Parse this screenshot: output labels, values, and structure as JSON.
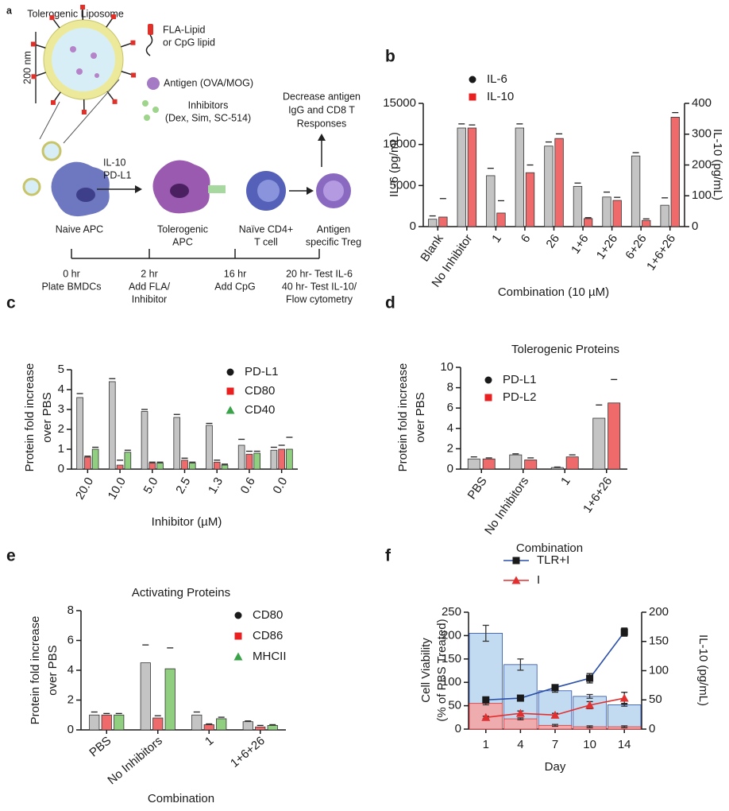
{
  "diagram": {
    "panel_label": "a",
    "liposome_title": "Tolerogenic Liposome",
    "scale_label": "200 nm",
    "legend": [
      [
        "FLA-Lipid",
        "or CpG lipid"
      ],
      [
        "Antigen (OVA/MOG)"
      ],
      [
        "Inhibitors",
        "(Dex, Sim, SC-514)"
      ]
    ],
    "outcome": [
      "Decrease antigen",
      "IgG and CD8 T",
      "Responses"
    ],
    "signals": [
      "IL-10",
      "PD-L1"
    ],
    "cells": [
      [
        "Naive APC"
      ],
      [
        "Tolerogenic",
        "APC"
      ],
      [
        "Naïve CD4+",
        "T cell"
      ],
      [
        "Antigen",
        "specific Treg"
      ]
    ],
    "timeline": [
      [
        "0 hr",
        "Plate BMDCs"
      ],
      [
        "2 hr",
        "Add FLA/",
        "Inhibitor"
      ],
      [
        "16 hr",
        "Add CpG"
      ],
      [
        "20 hr- Test IL-6",
        "40 hr- Test IL-10/",
        "Flow cytometry"
      ]
    ]
  },
  "chart_data": [
    {
      "type": "bar",
      "panel_label": "b",
      "xlabel": "Combination (10 µM)",
      "ylabel": [
        "IL-6 (pg/mL)"
      ],
      "y2label": "IL-10 (pg/mL)",
      "categories": [
        "Blank",
        "No Inhibitor",
        "1",
        "6",
        "26",
        "1+6",
        "1+26",
        "6+26",
        "1+6+26"
      ],
      "ylim": [
        0,
        15000
      ],
      "yticks": [
        0,
        5000,
        10000,
        15000
      ],
      "y2lim": [
        0,
        400
      ],
      "y2ticks": [
        0,
        100,
        200,
        300,
        400
      ],
      "series": [
        {
          "name": "IL-6",
          "color": "#c4c4c4",
          "marker_color": "#1a1a1a",
          "marker": "circle",
          "values": [
            900,
            12000,
            6200,
            12000,
            9800,
            4900,
            3600,
            8600,
            2600
          ],
          "errors": [
            400,
            500,
            900,
            500,
            500,
            400,
            600,
            400,
            900
          ]
        },
        {
          "name": "IL-10",
          "color": "#ef6b6b",
          "marker_color": "#e8201f",
          "marker": "square",
          "axis": "y2",
          "values": [
            31,
            320,
            44,
            175,
            286,
            26,
            85,
            20,
            355
          ],
          "errors": [
            60,
            10,
            40,
            25,
            15,
            3,
            10,
            5,
            15
          ]
        }
      ]
    },
    {
      "type": "bar",
      "panel_label": "c",
      "xlabel": "Inhibitor (µM)",
      "ylabel": [
        "Protein fold increase",
        "over PBS"
      ],
      "categories": [
        "20.0",
        "10.0",
        "5.0",
        "2.5",
        "1.3",
        "0.6",
        "0.0"
      ],
      "ylim": [
        0,
        5
      ],
      "yticks": [
        0,
        1,
        2,
        3,
        4,
        5
      ],
      "series": [
        {
          "name": "PD-L1",
          "color": "#c4c4c4",
          "marker_color": "#1a1a1a",
          "marker": "circle",
          "values": [
            3.6,
            4.4,
            2.9,
            2.6,
            2.2,
            1.2,
            0.95
          ],
          "errors": [
            0.2,
            0.15,
            0.1,
            0.15,
            0.1,
            0.3,
            0.15
          ]
        },
        {
          "name": "CD80",
          "color": "#ef6b6b",
          "marker_color": "#e8201f",
          "marker": "square",
          "values": [
            0.6,
            0.2,
            0.3,
            0.45,
            0.35,
            0.75,
            1.0
          ],
          "errors": [
            0.05,
            0.25,
            0.05,
            0.1,
            0.1,
            0.15,
            0.2
          ]
        },
        {
          "name": "CD40",
          "color": "#8fcf7f",
          "marker_color": "#3aa34a",
          "marker": "triangle",
          "values": [
            1.0,
            0.85,
            0.3,
            0.3,
            0.2,
            0.8,
            1.0
          ],
          "errors": [
            0.1,
            0.1,
            0.05,
            0.05,
            0.05,
            0.1,
            0.6
          ]
        }
      ]
    },
    {
      "type": "bar",
      "panel_label": "d",
      "title": "Tolerogenic Proteins",
      "xlabel": "Combination",
      "ylabel": [
        "Protein fold increase",
        "over PBS"
      ],
      "categories": [
        "PBS",
        "No Inhibitors",
        "1",
        "1+6+26"
      ],
      "ylim": [
        0,
        10
      ],
      "yticks": [
        0,
        2,
        4,
        6,
        8,
        10
      ],
      "series": [
        {
          "name": "PD-L1",
          "color": "#c4c4c4",
          "marker_color": "#1a1a1a",
          "marker": "circle",
          "values": [
            1.0,
            1.4,
            0.15,
            5.0
          ],
          "errors": [
            0.2,
            0.1,
            0.05,
            1.3
          ]
        },
        {
          "name": "PD-L2",
          "color": "#ef6b6b",
          "marker_color": "#e8201f",
          "marker": "square",
          "values": [
            1.0,
            0.9,
            1.2,
            6.5
          ],
          "errors": [
            0.1,
            0.2,
            0.2,
            2.3
          ]
        }
      ]
    },
    {
      "type": "bar",
      "panel_label": "e",
      "title": "Activating Proteins",
      "xlabel": "Combination",
      "ylabel": [
        "Protein fold increase",
        "over PBS"
      ],
      "categories": [
        "PBS",
        "No Inhibitors",
        "1",
        "1+6+26"
      ],
      "ylim": [
        0,
        8
      ],
      "yticks": [
        0,
        2,
        4,
        6,
        8
      ],
      "series": [
        {
          "name": "CD80",
          "color": "#c4c4c4",
          "marker_color": "#1a1a1a",
          "marker": "circle",
          "values": [
            1.0,
            4.5,
            1.0,
            0.55
          ],
          "errors": [
            0.2,
            1.2,
            0.2,
            0.05
          ]
        },
        {
          "name": "CD86",
          "color": "#ef6b6b",
          "marker_color": "#e8201f",
          "marker": "square",
          "values": [
            1.0,
            0.8,
            0.35,
            0.2
          ],
          "errors": [
            0.1,
            0.15,
            0.05,
            0.1
          ]
        },
        {
          "name": "MHCII",
          "color": "#8fcf7f",
          "marker_color": "#3aa34a",
          "marker": "triangle",
          "values": [
            1.0,
            4.1,
            0.75,
            0.3
          ],
          "errors": [
            0.1,
            1.4,
            0.1,
            0.05
          ]
        }
      ]
    },
    {
      "type": "bar-line",
      "panel_label": "f",
      "xlabel": "Day",
      "ylabel": [
        "Cell Viability",
        "(% of PBS Treated)"
      ],
      "y2label": "IL-10 (pg/mL)",
      "categories": [
        "1",
        "4",
        "7",
        "10",
        "14"
      ],
      "ylim": [
        0,
        250
      ],
      "yticks": [
        0,
        50,
        100,
        150,
        200,
        250
      ],
      "y2lim": [
        0,
        200
      ],
      "y2ticks": [
        0,
        50,
        100,
        150,
        200
      ],
      "series": [
        {
          "name": "TLR+I",
          "color": "#2b4fa8",
          "marker_color": "#1a1a1a",
          "marker": "square",
          "bar_color": "#bcd7f0",
          "axis": "y2",
          "values": [
            50,
            53,
            71,
            87,
            166
          ],
          "errors": [
            5,
            3,
            3,
            8,
            7
          ],
          "bar_values": [
            205,
            138,
            82,
            70,
            52
          ],
          "bar_errors": [
            17,
            12,
            3,
            4,
            3
          ]
        },
        {
          "name": "I",
          "color": "#e03030",
          "marker_color": "#e03030",
          "marker": "triangle",
          "bar_color": "#f4a6a6",
          "axis": "y2",
          "values": [
            20,
            27,
            24,
            41,
            53
          ],
          "errors": [
            2,
            4,
            3,
            6,
            10
          ],
          "bar_values": [
            55,
            22,
            8,
            5,
            5
          ],
          "bar_errors": [
            3,
            2,
            2,
            2,
            2
          ]
        }
      ]
    }
  ]
}
